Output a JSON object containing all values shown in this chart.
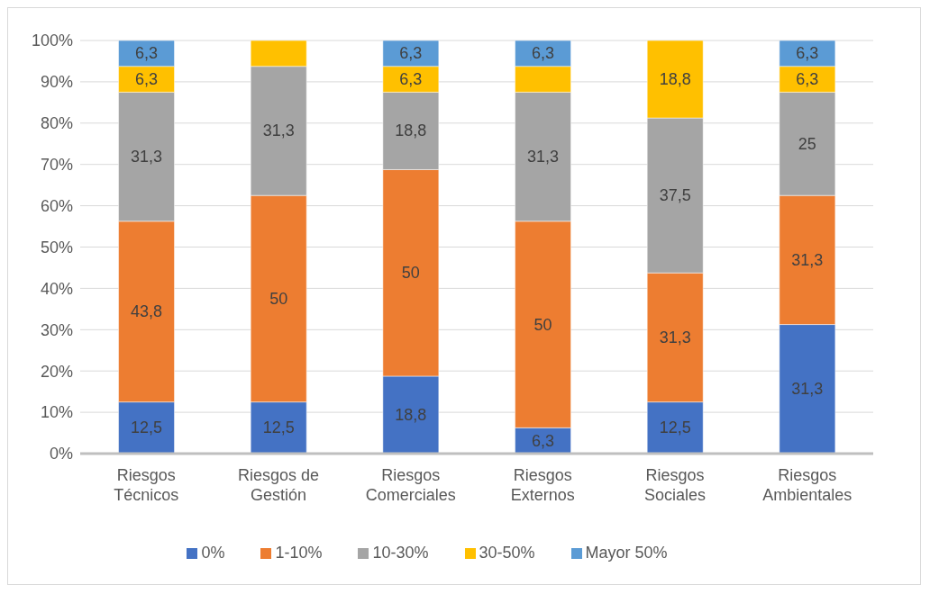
{
  "chart_data": {
    "type": "bar",
    "stacked": true,
    "categories": [
      "Riesgos Técnicos",
      "Riesgos de Gestión",
      "Riesgos Comerciales",
      "Riesgos Externos",
      "Riesgos Sociales",
      "Riesgos Ambientales"
    ],
    "series": [
      {
        "name": "0%",
        "color": "#4472c4",
        "values": [
          12.5,
          12.5,
          18.75,
          6.25,
          12.5,
          31.25
        ],
        "value_labels": [
          "12,5",
          "12,5",
          "18,8",
          "6,3",
          "12,5",
          "31,3"
        ]
      },
      {
        "name": "1-10%",
        "color": "#ed7d31",
        "values": [
          43.75,
          50,
          50,
          50,
          31.25,
          31.25
        ],
        "value_labels": [
          "43,8",
          "50",
          "50",
          "50",
          "31,3",
          "31,3"
        ]
      },
      {
        "name": "10-30%",
        "color": "#a5a5a5",
        "values": [
          31.25,
          31.25,
          18.75,
          31.25,
          37.5,
          25
        ],
        "value_labels": [
          "31,3",
          "31,3",
          "18,8",
          "31,3",
          "37,5",
          "25"
        ]
      },
      {
        "name": "30-50%",
        "color": "#ffc000",
        "values": [
          6.25,
          6.25,
          6.25,
          6.25,
          18.75,
          6.25
        ],
        "value_labels": [
          "6,3",
          null,
          "6,3",
          null,
          "18,8",
          "6,3"
        ]
      },
      {
        "name": "Mayor 50%",
        "color": "#5b9bd5",
        "values": [
          6.25,
          0,
          6.25,
          6.25,
          0,
          6.25
        ],
        "value_labels": [
          "6,3",
          null,
          "6,3",
          "6,3",
          null,
          "6,3"
        ]
      }
    ],
    "ylim": [
      0,
      100
    ],
    "yticks": [
      {
        "value": 0,
        "label": "0%"
      },
      {
        "value": 10,
        "label": "10%"
      },
      {
        "value": 20,
        "label": "20%"
      },
      {
        "value": 30,
        "label": "30%"
      },
      {
        "value": 40,
        "label": "40%"
      },
      {
        "value": 50,
        "label": "50%"
      },
      {
        "value": 60,
        "label": "60%"
      },
      {
        "value": 70,
        "label": "70%"
      },
      {
        "value": 80,
        "label": "80%"
      },
      {
        "value": 90,
        "label": "90%"
      },
      {
        "value": 100,
        "label": "100%"
      }
    ],
    "grid": "y",
    "legend": "bottom"
  }
}
